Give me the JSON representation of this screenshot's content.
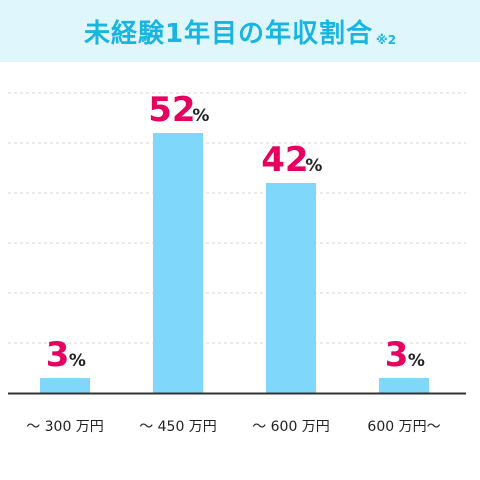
{
  "title": "未経験1年目の年収割合",
  "title_note": "※2",
  "colors": {
    "title_band": "#dff6fc",
    "title_text": "#17b5df",
    "bar": "#7fd8fb",
    "value_number": "#e6005f",
    "percent_sign": "#222222",
    "baseline": "#333333",
    "gridline": "#d6d6d6"
  },
  "chart_data": {
    "type": "bar",
    "title": "未経験1年目の年収割合",
    "categories": [
      "～ 300 万円",
      "～ 450 万円",
      "～ 600 万円",
      "600 万円～"
    ],
    "values": [
      3,
      52,
      42,
      3
    ],
    "value_suffix": "%",
    "ylim": [
      0,
      60
    ],
    "grid": true,
    "grid_step": 10,
    "xlabel": "",
    "ylabel": ""
  }
}
